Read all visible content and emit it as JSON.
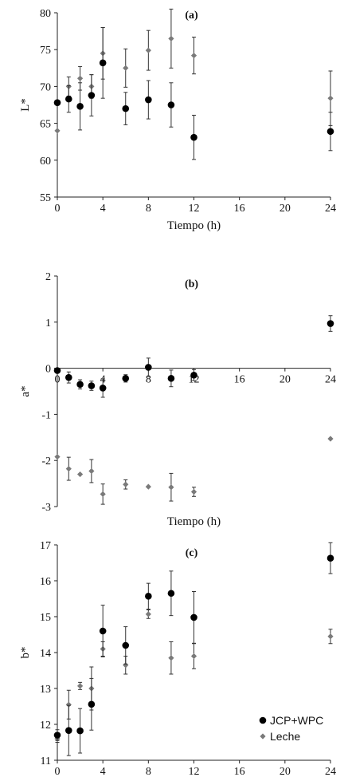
{
  "chart_data": [
    {
      "type": "scatter",
      "panel_label": "(a)",
      "xlabel": "Tiempo (h)",
      "ylabel": "L*",
      "xlim": [
        0,
        24
      ],
      "ylim": [
        55,
        80
      ],
      "xticks": [
        0,
        4,
        8,
        12,
        16,
        20,
        24
      ],
      "yticks": [
        55,
        60,
        65,
        70,
        75,
        80
      ],
      "grid": false,
      "legend": false,
      "series": [
        {
          "name": "JCP+WPC",
          "marker": "circle",
          "color": "#000000",
          "x": [
            0,
            1,
            2,
            3,
            4,
            6,
            8,
            10,
            12,
            24
          ],
          "y": [
            67.8,
            68.3,
            67.3,
            68.8,
            73.2,
            67.0,
            68.2,
            67.5,
            63.1,
            63.9
          ],
          "err": [
            0,
            1.8,
            3.2,
            2.8,
            4.8,
            2.2,
            2.6,
            3.0,
            3.0,
            2.6
          ]
        },
        {
          "name": "Leche",
          "marker": "diamond",
          "color": "#7a7a7a",
          "x": [
            0,
            1,
            2,
            3,
            4,
            6,
            8,
            10,
            12,
            24
          ],
          "y": [
            64.0,
            70.0,
            71.1,
            70.0,
            74.5,
            72.5,
            74.9,
            76.5,
            74.2,
            68.4
          ],
          "err": [
            0,
            1.3,
            1.6,
            1.6,
            3.5,
            2.6,
            2.7,
            4.0,
            2.5,
            3.7
          ]
        }
      ]
    },
    {
      "type": "scatter",
      "panel_label": "(b)",
      "xlabel": "Tiempo (h)",
      "ylabel": "a*",
      "xlim": [
        0,
        24
      ],
      "ylim": [
        -3,
        2
      ],
      "xticks": [
        0,
        4,
        8,
        12,
        16,
        20,
        24
      ],
      "yticks": [
        -3,
        -2,
        -1,
        0,
        1,
        2
      ],
      "xaxis_at_zero": true,
      "grid": false,
      "legend": false,
      "series": [
        {
          "name": "JCP+WPC",
          "marker": "circle",
          "color": "#000000",
          "x": [
            0,
            1,
            2,
            3,
            4,
            6,
            8,
            10,
            12,
            24
          ],
          "y": [
            -0.05,
            -0.2,
            -0.35,
            -0.38,
            -0.43,
            -0.22,
            0.02,
            -0.22,
            -0.15,
            0.97
          ],
          "err": [
            0,
            0.12,
            0.1,
            0.1,
            0.2,
            0.08,
            0.2,
            0.18,
            0.12,
            0.17
          ]
        },
        {
          "name": "Leche",
          "marker": "diamond",
          "color": "#7a7a7a",
          "x": [
            0,
            1,
            2,
            3,
            4,
            6,
            8,
            10,
            12,
            24
          ],
          "y": [
            -1.92,
            -2.18,
            -2.3,
            -2.23,
            -2.73,
            -2.52,
            -2.57,
            -2.58,
            -2.68,
            -1.53
          ],
          "err": [
            0,
            0.25,
            0,
            0.25,
            0.22,
            0.1,
            0,
            0.3,
            0.1,
            0
          ]
        }
      ]
    },
    {
      "type": "scatter",
      "panel_label": "(c)",
      "xlabel": "Tiempo (h)",
      "ylabel": "b*",
      "xlim": [
        0,
        24
      ],
      "ylim": [
        11,
        17
      ],
      "xticks": [
        0,
        4,
        8,
        12,
        16,
        20,
        24
      ],
      "yticks": [
        11,
        12,
        13,
        14,
        15,
        16,
        17
      ],
      "grid": false,
      "legend": true,
      "legend_position": "bottom-right",
      "series": [
        {
          "name": "JCP+WPC",
          "marker": "circle",
          "color": "#000000",
          "x": [
            0,
            1,
            2,
            3,
            4,
            6,
            8,
            10,
            12,
            24
          ],
          "y": [
            11.7,
            11.83,
            11.82,
            12.56,
            14.6,
            14.2,
            15.57,
            15.65,
            14.98,
            16.63
          ],
          "err": [
            0.15,
            0.7,
            0.62,
            0.72,
            0.72,
            0.52,
            0.36,
            0.62,
            0.72,
            0.43
          ]
        },
        {
          "name": "Leche",
          "marker": "diamond",
          "color": "#7a7a7a",
          "x": [
            0,
            1,
            2,
            3,
            4,
            6,
            8,
            10,
            12,
            24
          ],
          "y": [
            11.6,
            12.55,
            13.07,
            13.0,
            14.1,
            13.65,
            15.07,
            13.85,
            13.9,
            14.45
          ],
          "err": [
            0.1,
            0.4,
            0.1,
            0.6,
            0.2,
            0.25,
            0.12,
            0.45,
            0.35,
            0.2
          ]
        }
      ]
    }
  ]
}
